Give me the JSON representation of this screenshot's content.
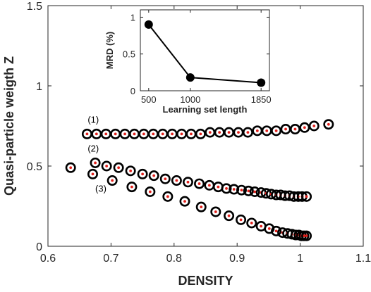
{
  "chart_data": [
    {
      "type": "scatter",
      "title": "",
      "xlabel": "DENSITY",
      "ylabel": "Quasi-particle weigth Z",
      "xlim": [
        0.6,
        1.1
      ],
      "ylim": [
        0,
        1.5
      ],
      "xticks": [
        "0.6",
        "0.7",
        "0.8",
        "0.9",
        "1",
        "1.1"
      ],
      "yticks": [
        "0",
        "0.5",
        "1",
        "1.5"
      ],
      "grid": false,
      "marker": "open black circle with red center dot",
      "colors": {
        "ring": "#000000",
        "center": "#e0201b"
      },
      "series": [
        {
          "name": "(1)",
          "x": [
            0.662,
            0.677,
            0.692,
            0.707,
            0.722,
            0.737,
            0.752,
            0.767,
            0.782,
            0.797,
            0.812,
            0.827,
            0.842,
            0.857,
            0.872,
            0.887,
            0.902,
            0.917,
            0.932,
            0.947,
            0.962,
            0.977,
            0.992,
            1.007,
            1.022,
            1.045
          ],
          "y": [
            0.7,
            0.7,
            0.7,
            0.7,
            0.7,
            0.7,
            0.7,
            0.7,
            0.7,
            0.7,
            0.7,
            0.7,
            0.7,
            0.71,
            0.71,
            0.71,
            0.71,
            0.71,
            0.72,
            0.72,
            0.72,
            0.73,
            0.73,
            0.74,
            0.75,
            0.76
          ]
        },
        {
          "name": "(2)",
          "x": [
            0.636,
            0.675,
            0.693,
            0.712,
            0.731,
            0.75,
            0.768,
            0.786,
            0.804,
            0.822,
            0.84,
            0.856,
            0.87,
            0.883,
            0.895,
            0.907,
            0.918,
            0.928,
            0.938,
            0.946,
            0.954,
            0.962,
            0.969,
            0.976,
            0.983,
            0.99,
            0.997,
            1.003,
            1.01
          ],
          "y": [
            0.49,
            0.52,
            0.5,
            0.49,
            0.47,
            0.45,
            0.44,
            0.42,
            0.41,
            0.4,
            0.39,
            0.38,
            0.37,
            0.36,
            0.355,
            0.35,
            0.345,
            0.34,
            0.335,
            0.33,
            0.325,
            0.32,
            0.32,
            0.315,
            0.315,
            0.31,
            0.31,
            0.31,
            0.31
          ]
        },
        {
          "name": "(3)",
          "x": [
            0.671,
            0.702,
            0.733,
            0.762,
            0.79,
            0.817,
            0.843,
            0.866,
            0.887,
            0.906,
            0.923,
            0.938,
            0.951,
            0.962,
            0.972,
            0.98,
            0.987,
            0.993,
            0.998,
            1.002,
            1.006,
            1.01
          ],
          "y": [
            0.45,
            0.41,
            0.37,
            0.34,
            0.31,
            0.28,
            0.245,
            0.215,
            0.19,
            0.165,
            0.145,
            0.125,
            0.11,
            0.095,
            0.085,
            0.08,
            0.075,
            0.07,
            0.07,
            0.065,
            0.065,
            0.065
          ]
        }
      ],
      "annotations": [
        "(1)",
        "(2)",
        "(3)"
      ]
    },
    {
      "type": "line",
      "title": "",
      "xlabel": "Learning set length",
      "ylabel": "MRD (%)",
      "xlim": [
        400,
        1950
      ],
      "ylim": [
        0,
        1.1
      ],
      "xticks": [
        "500",
        "1000",
        "1850"
      ],
      "yticks": [
        "0",
        "0.5",
        "1"
      ],
      "grid": false,
      "series": [
        {
          "x": [
            500,
            1000,
            1850
          ],
          "y": [
            0.9,
            0.18,
            0.11
          ]
        }
      ]
    }
  ]
}
